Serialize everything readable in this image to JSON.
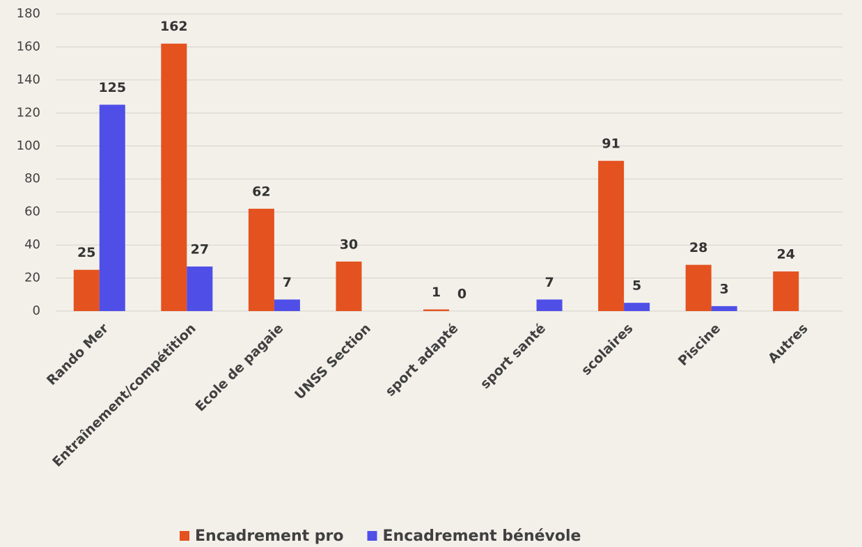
{
  "chart_data": {
    "type": "bar",
    "categories": [
      "Rando Mer",
      "Entraînement/compétition",
      "Ecole de pagaie",
      "UNSS Section",
      "sport adapté",
      "sport santé",
      "scolaires",
      "Piscine",
      "Autres"
    ],
    "series": [
      {
        "name": "Encadrement pro",
        "color": "#e4521f",
        "values": [
          25,
          162,
          62,
          30,
          1,
          null,
          91,
          28,
          24
        ]
      },
      {
        "name": "Encadrement bénévole",
        "color": "#4f4fe8",
        "values": [
          125,
          27,
          7,
          null,
          0,
          7,
          5,
          3,
          null
        ]
      }
    ],
    "ylim": [
      0,
      180
    ],
    "yticks": [
      0,
      20,
      40,
      60,
      80,
      100,
      120,
      140,
      160,
      180
    ],
    "grid": true,
    "legend": "bottom"
  }
}
